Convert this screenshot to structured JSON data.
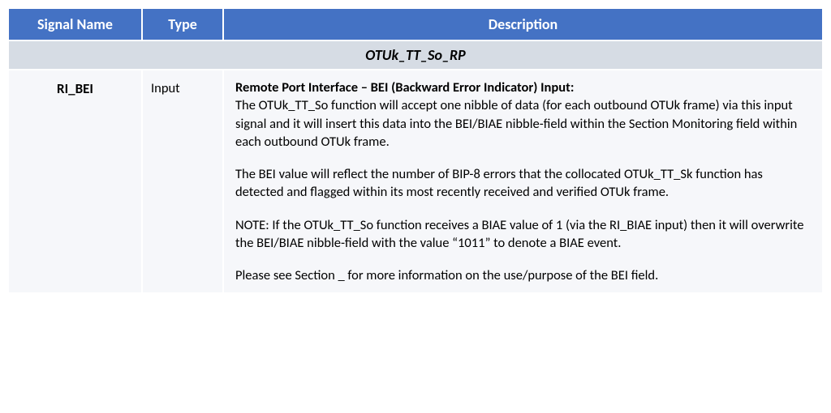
{
  "table": {
    "headers": {
      "signal_name": "Signal Name",
      "type": "Type",
      "description": "Description"
    },
    "section_title": "OTUk_TT_So_RP",
    "row": {
      "signal_name": "RI_BEI",
      "type": "Input",
      "description": {
        "title": "Remote Port Interface – BEI (Backward Error Indicator) Input:",
        "para1": "The OTUk_TT_So function will accept one nibble of data (for each outbound OTUk frame) via this input signal and it will insert this data into the BEI/BIAE nibble-field within the Section Monitoring field within each outbound OTUk frame.",
        "para2": "The BEI value will reflect the number of BIP-8 errors that the collocated OTUk_TT_Sk function has detected and flagged within its most recently received and verified OTUk frame.",
        "para3": "NOTE:  If the OTUk_TT_So function receives a BIAE value of 1 (via the RI_BIAE input) then it will overwrite the BEI/BIAE nibble-field with the value “1011” to denote a BIAE event.",
        "para4": "Please see Section _ for more information on the use/purpose of the BEI field."
      }
    }
  },
  "styling": {
    "header_bg": "#4472c4",
    "header_text_color": "#ffffff",
    "section_bg": "#d6dce4",
    "data_bg": "#f6f7fa",
    "text_color": "#000000",
    "border_color": "#ffffff",
    "font_family": "Calibri, 'Segoe UI', Arial, sans-serif"
  }
}
